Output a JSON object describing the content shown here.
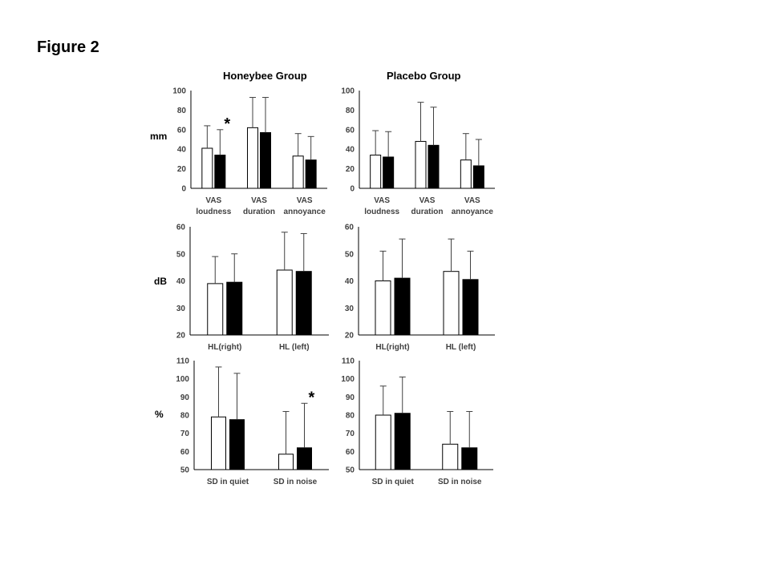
{
  "figure_title": "Figure 2",
  "group_titles": [
    "Honeybee Group",
    "Placebo Group"
  ],
  "unit_labels": [
    "mm",
    "dB",
    "%"
  ],
  "colors": {
    "bar_pre": "#ffffff",
    "bar_post": "#000000",
    "axis": "#000000",
    "text": "#404040"
  },
  "chart_data": [
    {
      "type": "bar",
      "title": "",
      "group": "Honeybee Group",
      "ylabel": "mm",
      "ylim": [
        0,
        100
      ],
      "yticks": [
        0,
        20,
        40,
        60,
        80,
        100
      ],
      "categories": [
        "VAS\nloudness",
        "VAS\nduration",
        "VAS\nannoyance"
      ],
      "series": [
        {
          "values": [
            41,
            62,
            33
          ],
          "errors": [
            23,
            31,
            23
          ]
        },
        {
          "values": [
            34,
            57,
            29
          ],
          "errors": [
            26,
            36,
            24
          ]
        }
      ],
      "annotations": [
        {
          "text": "*",
          "category": 0,
          "series": 1
        }
      ]
    },
    {
      "type": "bar",
      "title": "",
      "group": "Placebo Group",
      "ylabel": "",
      "ylim": [
        0,
        100
      ],
      "yticks": [
        0,
        20,
        40,
        60,
        80,
        100
      ],
      "categories": [
        "VAS\nloudness",
        "VAS\nduration",
        "VAS\nannoyance"
      ],
      "series": [
        {
          "values": [
            34,
            48,
            29
          ],
          "errors": [
            25,
            40,
            27
          ]
        },
        {
          "values": [
            32,
            44,
            23
          ],
          "errors": [
            26,
            39,
            27
          ]
        }
      ],
      "annotations": []
    },
    {
      "type": "bar",
      "title": "",
      "group": "Honeybee Group",
      "ylabel": "dB",
      "ylim": [
        20,
        60
      ],
      "yticks": [
        20,
        30,
        40,
        50,
        60
      ],
      "categories": [
        "HL(right)",
        "HL (left)"
      ],
      "series": [
        {
          "values": [
            39,
            44
          ],
          "errors": [
            10,
            14
          ]
        },
        {
          "values": [
            39.5,
            43.5
          ],
          "errors": [
            10.5,
            14
          ]
        }
      ],
      "annotations": []
    },
    {
      "type": "bar",
      "title": "",
      "group": "Placebo Group",
      "ylabel": "",
      "ylim": [
        20,
        60
      ],
      "yticks": [
        20,
        30,
        40,
        50,
        60
      ],
      "categories": [
        "HL(right)",
        "HL (left)"
      ],
      "series": [
        {
          "values": [
            40,
            43.5
          ],
          "errors": [
            11,
            12
          ]
        },
        {
          "values": [
            41,
            40.5
          ],
          "errors": [
            14.5,
            10.5
          ]
        }
      ],
      "annotations": []
    },
    {
      "type": "bar",
      "title": "",
      "group": "Honeybee Group",
      "ylabel": "%",
      "ylim": [
        50,
        110
      ],
      "yticks": [
        50,
        60,
        70,
        80,
        90,
        100,
        110
      ],
      "categories": [
        "SD in quiet",
        "SD in noise"
      ],
      "series": [
        {
          "values": [
            79,
            58.5
          ],
          "errors": [
            27.5,
            23.5
          ]
        },
        {
          "values": [
            77.5,
            62
          ],
          "errors": [
            25.5,
            24.5
          ]
        }
      ],
      "annotations": [
        {
          "text": "*",
          "category": 1,
          "series": 1
        }
      ]
    },
    {
      "type": "bar",
      "title": "",
      "group": "Placebo Group",
      "ylabel": "",
      "ylim": [
        50,
        110
      ],
      "yticks": [
        50,
        60,
        70,
        80,
        90,
        100,
        110
      ],
      "categories": [
        "SD in quiet",
        "SD in noise"
      ],
      "series": [
        {
          "values": [
            80,
            64
          ],
          "errors": [
            16,
            18
          ]
        },
        {
          "values": [
            81,
            62
          ],
          "errors": [
            20,
            20
          ]
        }
      ],
      "annotations": []
    }
  ]
}
